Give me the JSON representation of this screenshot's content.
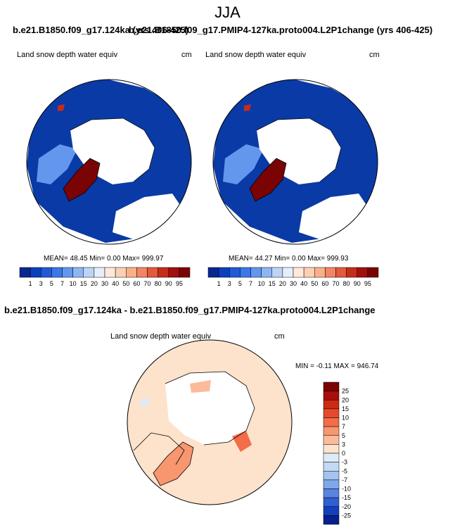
{
  "header": {
    "main_title": "JJA",
    "title_left": "b.e21.B1850.f09_g17.124ka (yrs 406-425)",
    "title_right": "b.e21.B1850.f09_g17.PMIP4-127ka.proto004.L2P1change (yrs 406-425)",
    "diff_title": "b.e21.B1850.f09_g17.124ka - b.e21.B1850.f09_g17.PMIP4-127ka.proto004.L2P1change"
  },
  "panels": [
    {
      "var_label": "Land snow depth water equiv",
      "units": "cm",
      "stats": "MEAN=  48.45   Min=    0.00   Max= 999.97"
    },
    {
      "var_label": "Land snow depth water equiv",
      "units": "cm",
      "stats": "MEAN=  44.27   Min=    0.00   Max= 999.93"
    },
    {
      "var_label": "Land snow depth water equiv",
      "units": "cm",
      "stats": "MIN =  -0.11  MAX = 946.74"
    }
  ],
  "chart_data": [
    {
      "type": "heatmap",
      "projection": "north-polar-stereographic",
      "levels": [
        "1",
        "3",
        "5",
        "7",
        "10",
        "15",
        "20",
        "30",
        "40",
        "50",
        "60",
        "70",
        "80",
        "90",
        "95"
      ],
      "colors": [
        "#08278f",
        "#0c3fbd",
        "#1f5ad8",
        "#3b78e7",
        "#6397ee",
        "#8eb5f3",
        "#bcd4f6",
        "#e6eefb",
        "#ffe9da",
        "#fcd0b4",
        "#f9b08a",
        "#f28563",
        "#e2593c",
        "#c52d19",
        "#a30f0d",
        "#7a0403"
      ]
    },
    {
      "type": "heatmap",
      "projection": "north-polar-stereographic",
      "levels": [
        "1",
        "3",
        "5",
        "7",
        "10",
        "15",
        "20",
        "30",
        "40",
        "50",
        "60",
        "70",
        "80",
        "90",
        "95"
      ],
      "colors": [
        "#08278f",
        "#0c3fbd",
        "#1f5ad8",
        "#3b78e7",
        "#6397ee",
        "#8eb5f3",
        "#bcd4f6",
        "#e6eefb",
        "#ffe9da",
        "#fcd0b4",
        "#f9b08a",
        "#f28563",
        "#e2593c",
        "#c52d19",
        "#a30f0d",
        "#7a0403"
      ]
    },
    {
      "type": "heatmap",
      "projection": "north-polar-stereographic",
      "levels": [
        "25",
        "20",
        "15",
        "10",
        "7",
        "5",
        "3",
        "0",
        "-3",
        "-5",
        "-7",
        "-10",
        "-15",
        "-20",
        "-25"
      ],
      "colors": [
        "#7a0403",
        "#a70e0d",
        "#cc2a15",
        "#e6492b",
        "#f26d48",
        "#f8966f",
        "#fbbb9a",
        "#fde2cc",
        "#dcebf8",
        "#c3daf4",
        "#a3c4ef",
        "#7ea8e9",
        "#5885de",
        "#2f5fd2",
        "#123fbe",
        "#06208c"
      ]
    }
  ]
}
